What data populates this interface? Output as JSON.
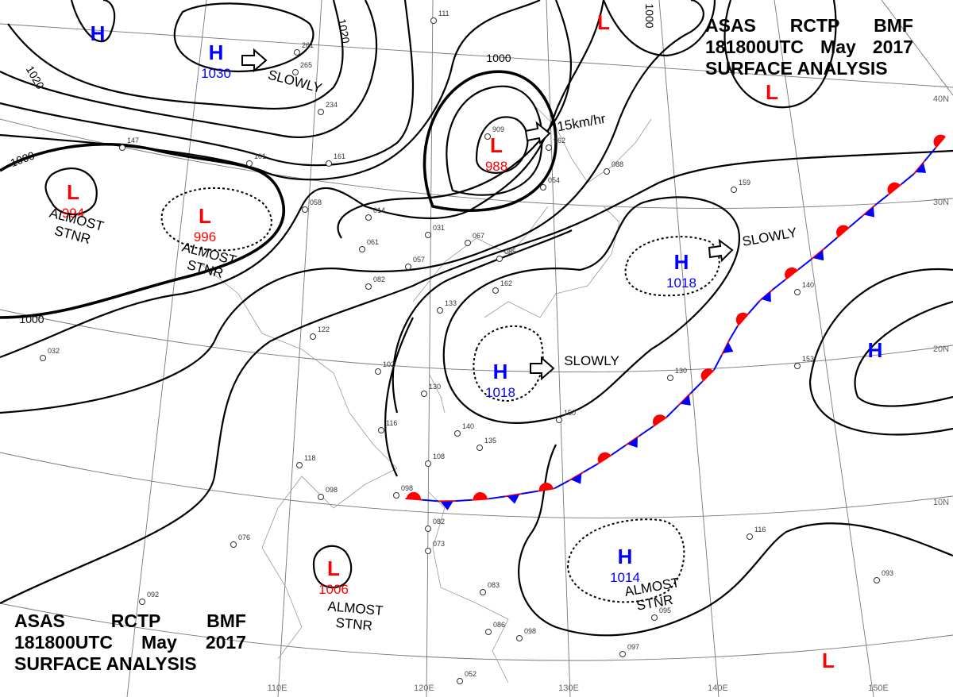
{
  "header_top_right": {
    "line1": [
      "ASAS",
      "RCTP",
      "BMF"
    ],
    "line2": [
      "181800UTC",
      "May",
      "2017"
    ],
    "line3": "SURFACE ANALYSIS"
  },
  "header_bottom_left": {
    "line1": [
      "ASAS",
      "RCTP",
      "BMF"
    ],
    "line2": [
      "181800UTC",
      "May",
      "2017"
    ],
    "line3": "SURFACE ANALYSIS"
  },
  "colors": {
    "high": "#0000ff",
    "low": "#ff0000",
    "warm_front": "#ff0000",
    "cold_front": "#0000ff",
    "isobar": "#000000"
  },
  "pressure_centers": [
    {
      "type": "H",
      "value": ""
    },
    {
      "type": "H",
      "value": "1030"
    },
    {
      "type": "L",
      "value": "988"
    },
    {
      "type": "L",
      "value": ""
    },
    {
      "type": "L",
      "value": ""
    },
    {
      "type": "L",
      "value": "994"
    },
    {
      "type": "L",
      "value": "996"
    },
    {
      "type": "H",
      "value": "1018"
    },
    {
      "type": "H",
      "value": "1018"
    },
    {
      "type": "H",
      "value": ""
    },
    {
      "type": "L",
      "value": "1006"
    },
    {
      "type": "H",
      "value": "1014"
    },
    {
      "type": "L",
      "value": ""
    },
    {
      "type": "L",
      "value": ""
    }
  ],
  "motion_labels": [
    "SLOWLY",
    "15km/hr",
    "SLOWLY",
    "SLOWLY"
  ],
  "stationary_labels": [
    "ALMOST\nSTNR",
    "ALMOST\nSTNR",
    "ALMOST\nSTNR",
    "ALMOST\nSTNR"
  ],
  "isobar_labels": [
    "1020",
    "1020",
    "1000",
    "1000",
    "1000",
    "1000"
  ],
  "latitude_labels": [
    "40N",
    "30N",
    "20N",
    "10N"
  ],
  "longitude_labels": [
    "110E",
    "120E",
    "130E",
    "140E",
    "150E"
  ],
  "station_values": [
    "265",
    "234",
    "161",
    "101",
    "147",
    "058",
    "014",
    "061",
    "031",
    "067",
    "085",
    "057",
    "082",
    "162",
    "133",
    "122",
    "102",
    "130",
    "116",
    "118",
    "140",
    "135",
    "108",
    "098",
    "098",
    "082",
    "076",
    "073",
    "083",
    "086",
    "098",
    "092",
    "052",
    "909",
    "962",
    "054",
    "088",
    "159",
    "140",
    "130",
    "150",
    "116",
    "093",
    "097",
    "095",
    "032",
    "111",
    "261",
    "153"
  ]
}
